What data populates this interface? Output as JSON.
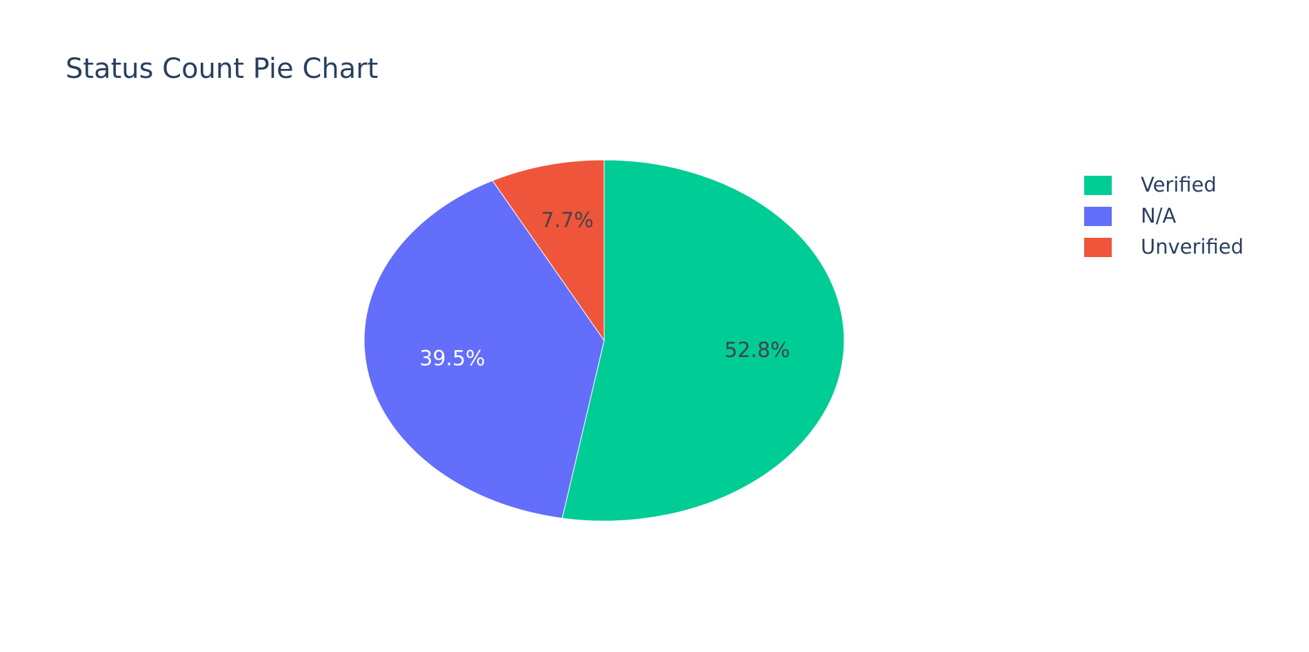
{
  "chart_data": {
    "type": "pie",
    "title": "Status Count Pie Chart",
    "labels": [
      "Verified",
      "N/A",
      "Unverified"
    ],
    "values": [
      52.8,
      39.5,
      7.7
    ],
    "slice_labels": [
      "52.8%",
      "39.5%",
      "7.7%"
    ],
    "colors": [
      "#00cc96",
      "#636efa",
      "#ef553b"
    ],
    "slice_text_colors": [
      "#444444",
      "#ffffff",
      "#444444"
    ],
    "legend_position": "top-right",
    "direction": "clockwise",
    "start": "top"
  }
}
